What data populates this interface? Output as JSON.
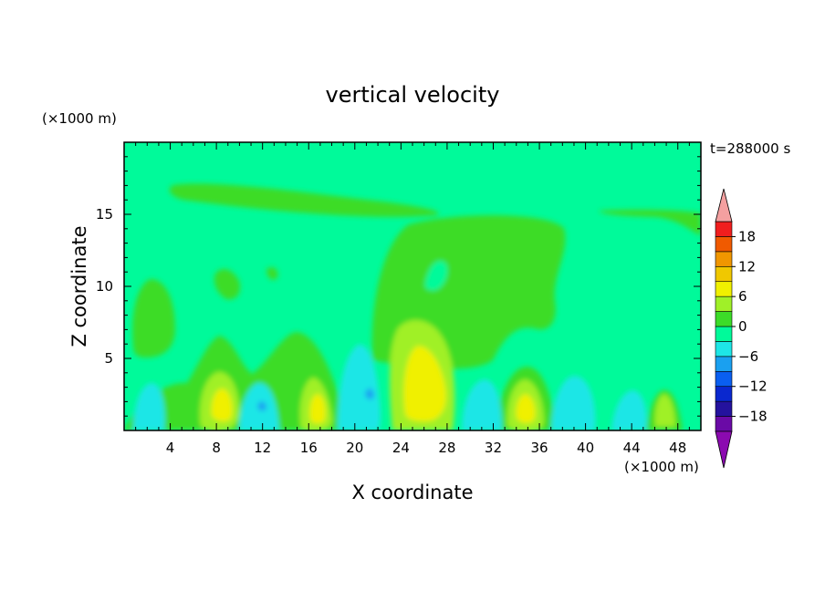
{
  "chart_data": {
    "type": "heatmap",
    "title": "vertical velocity",
    "xlabel": "X coordinate",
    "ylabel": "Z coordinate",
    "x_unit": "(×1000 m)",
    "y_unit": "(×1000 m)",
    "time_label": "t=288000 s",
    "xlim": [
      0,
      50
    ],
    "ylim": [
      0,
      20
    ],
    "x_ticks": [
      4,
      8,
      12,
      16,
      20,
      24,
      28,
      32,
      36,
      40,
      44,
      48
    ],
    "y_ticks": [
      5,
      10,
      15
    ],
    "x_tick_labels": [
      "4",
      "8",
      "12",
      "16",
      "20",
      "24",
      "28",
      "32",
      "36",
      "40",
      "44",
      "48"
    ],
    "y_tick_labels": [
      "5",
      "10",
      "15"
    ],
    "colorbar": {
      "levels": [
        -21,
        -18,
        -15,
        -12,
        -9,
        -6,
        -3,
        0,
        3,
        6,
        9,
        12,
        15,
        18,
        21
      ],
      "tick_values": [
        -18,
        -12,
        -6,
        0,
        6,
        12,
        18
      ],
      "tick_labels": [
        "−18",
        "−12",
        "−6",
        "0",
        "6",
        "12",
        "18"
      ],
      "colors": [
        "#6a0aa6",
        "#24129e",
        "#0a28cf",
        "#0a5ff0",
        "#1aa0f0",
        "#1ee6e6",
        "#00fa9a",
        "#3cdc28",
        "#a0f028",
        "#f0f000",
        "#f0c800",
        "#f09600",
        "#f05a00",
        "#f01e1e"
      ],
      "under_color": "#8b0ab0",
      "over_color": "#f4a0a0"
    },
    "background_value_range": [
      0,
      3
    ],
    "features": [
      {
        "type": "updraft",
        "x_center": 26,
        "z_center": 3.5,
        "max": 8
      },
      {
        "type": "updraft",
        "x_center": 9,
        "z_center": 2.2,
        "max": 5
      },
      {
        "type": "updraft",
        "x_center": 17,
        "z_center": 2,
        "max": 5
      },
      {
        "type": "updraft",
        "x_center": 34.5,
        "z_center": 2,
        "max": 5
      },
      {
        "type": "updraft",
        "x_center": 46.5,
        "z_center": 1.5,
        "max": 4
      },
      {
        "type": "downdraft",
        "x_center": 19,
        "z_center": 2.5,
        "min": -6
      },
      {
        "type": "downdraft",
        "x_center": 30.5,
        "z_center": 2.5,
        "min": -5
      },
      {
        "type": "anvil",
        "x_center": 32,
        "z_center": 11,
        "max": 2
      }
    ]
  }
}
